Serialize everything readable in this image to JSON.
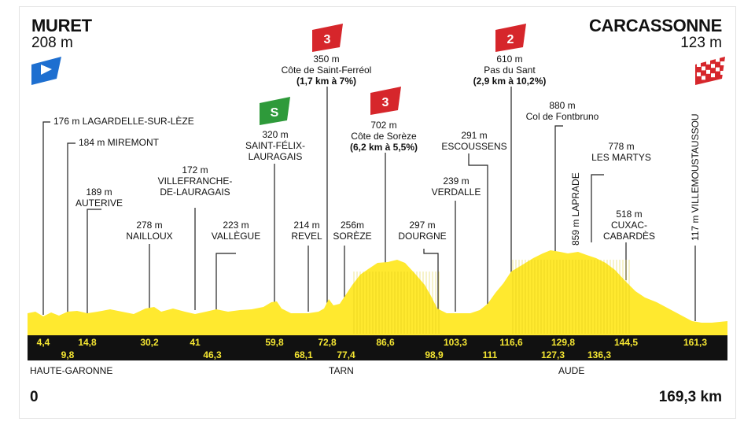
{
  "start": {
    "city": "MURET",
    "altitude": "208 m"
  },
  "finish": {
    "city": "CARCASSONNE",
    "altitude": "123 m"
  },
  "distance": {
    "start": "0",
    "end": "169,3 km"
  },
  "regions": [
    "HAUTE-GARONNE",
    "TARN",
    "AUDE"
  ],
  "colors": {
    "profile": "#ffe92f",
    "bar": "#111111",
    "km_text": "#f5e632",
    "cat3": "#d6262b",
    "sprint": "#2e9a3a",
    "start_flag": "#1e6fd0"
  },
  "icons": {
    "start": "blue-start-flag-icon",
    "finish": "checkered-finish-flag-icon",
    "climb": "category-flag-icon",
    "sprint": "sprint-flag-icon"
  },
  "km_markers_top": [
    "4,4",
    "14,8",
    "30,2",
    "41",
    "59,8",
    "72,8",
    "86,6",
    "103,3",
    "116,6",
    "129,8",
    "144,5",
    "161,3"
  ],
  "km_markers_bottom": [
    "9,8",
    "46,3",
    "68,1",
    "77,4",
    "98,9",
    "111",
    "127,3",
    "136,3"
  ],
  "points": {
    "lagardelle": "176 m LAGARDELLE-SUR-LÈZE",
    "miremont": "184 m MIREMONT",
    "auterive": [
      "189 m",
      "AUTERIVE"
    ],
    "villefranche": [
      "172 m",
      "VILLEFRANCHE-",
      "DE-LAURAGAIS"
    ],
    "nailloux": [
      "278 m",
      "NAILLOUX"
    ],
    "vallegue": [
      "223 m",
      "VALLÈGUE"
    ],
    "saint_felix": [
      "320 m",
      "SAINT-FÉLIX-",
      "LAURAGAIS"
    ],
    "revel": [
      "214 m",
      "REVEL"
    ],
    "soreze": [
      "256m",
      "SORÈZE"
    ],
    "dourgne": [
      "297 m",
      "DOURGNE"
    ],
    "verdalle": [
      "239 m",
      "VERDALLE"
    ],
    "escoussens": [
      "291 m",
      "ESCOUSSENS"
    ],
    "cuxac": [
      "518 m",
      "CUXAC-",
      "CABARDÈS"
    ],
    "les_martys": [
      "778 m",
      "LES MARTYS"
    ],
    "fontbruno": [
      "880 m",
      "Col de Fontbruno"
    ],
    "laprade": "859 m LAPRADE",
    "villemoustaussou": "117 m VILLEMOUSTAUSSOU"
  },
  "climbs": {
    "saint_ferreol": {
      "category": "3",
      "lines": [
        "350 m",
        "Côte de Saint-Ferréol",
        "(1,7 km à 7%)"
      ]
    },
    "soreze": {
      "category": "3",
      "lines": [
        "702 m",
        "Côte de Sorèze",
        "(6,2 km à 5,5%)"
      ]
    },
    "pas_du_sant": {
      "category": "2",
      "lines": [
        "610 m",
        "Pas du Sant",
        "(2,9 km à 10,2%)"
      ]
    }
  },
  "sprint": {
    "label": "S"
  }
}
